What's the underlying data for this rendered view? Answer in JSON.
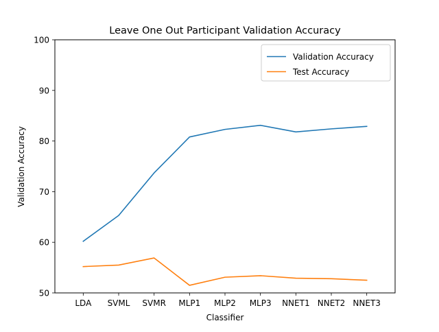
{
  "chart_data": {
    "type": "line",
    "title": "Leave One Out Participant Validation Accuracy",
    "xlabel": "Classifier",
    "ylabel": "Validation Accuracy",
    "categories": [
      "LDA",
      "SVML",
      "SVMR",
      "MLP1",
      "MLP2",
      "MLP3",
      "NNET1",
      "NNET2",
      "NNET3"
    ],
    "ylim": [
      50,
      100
    ],
    "yticks": [
      50,
      60,
      70,
      80,
      90,
      100
    ],
    "grid": false,
    "legend_position": "top-right",
    "series": [
      {
        "name": "Validation Accuracy",
        "color": "#1f77b4",
        "values": [
          60.2,
          65.3,
          73.7,
          80.8,
          82.3,
          83.1,
          81.8,
          82.4,
          82.9
        ]
      },
      {
        "name": "Test Accuracy",
        "color": "#ff7f0e",
        "values": [
          55.2,
          55.5,
          56.9,
          51.5,
          53.1,
          53.4,
          52.9,
          52.8,
          52.5
        ]
      }
    ]
  }
}
